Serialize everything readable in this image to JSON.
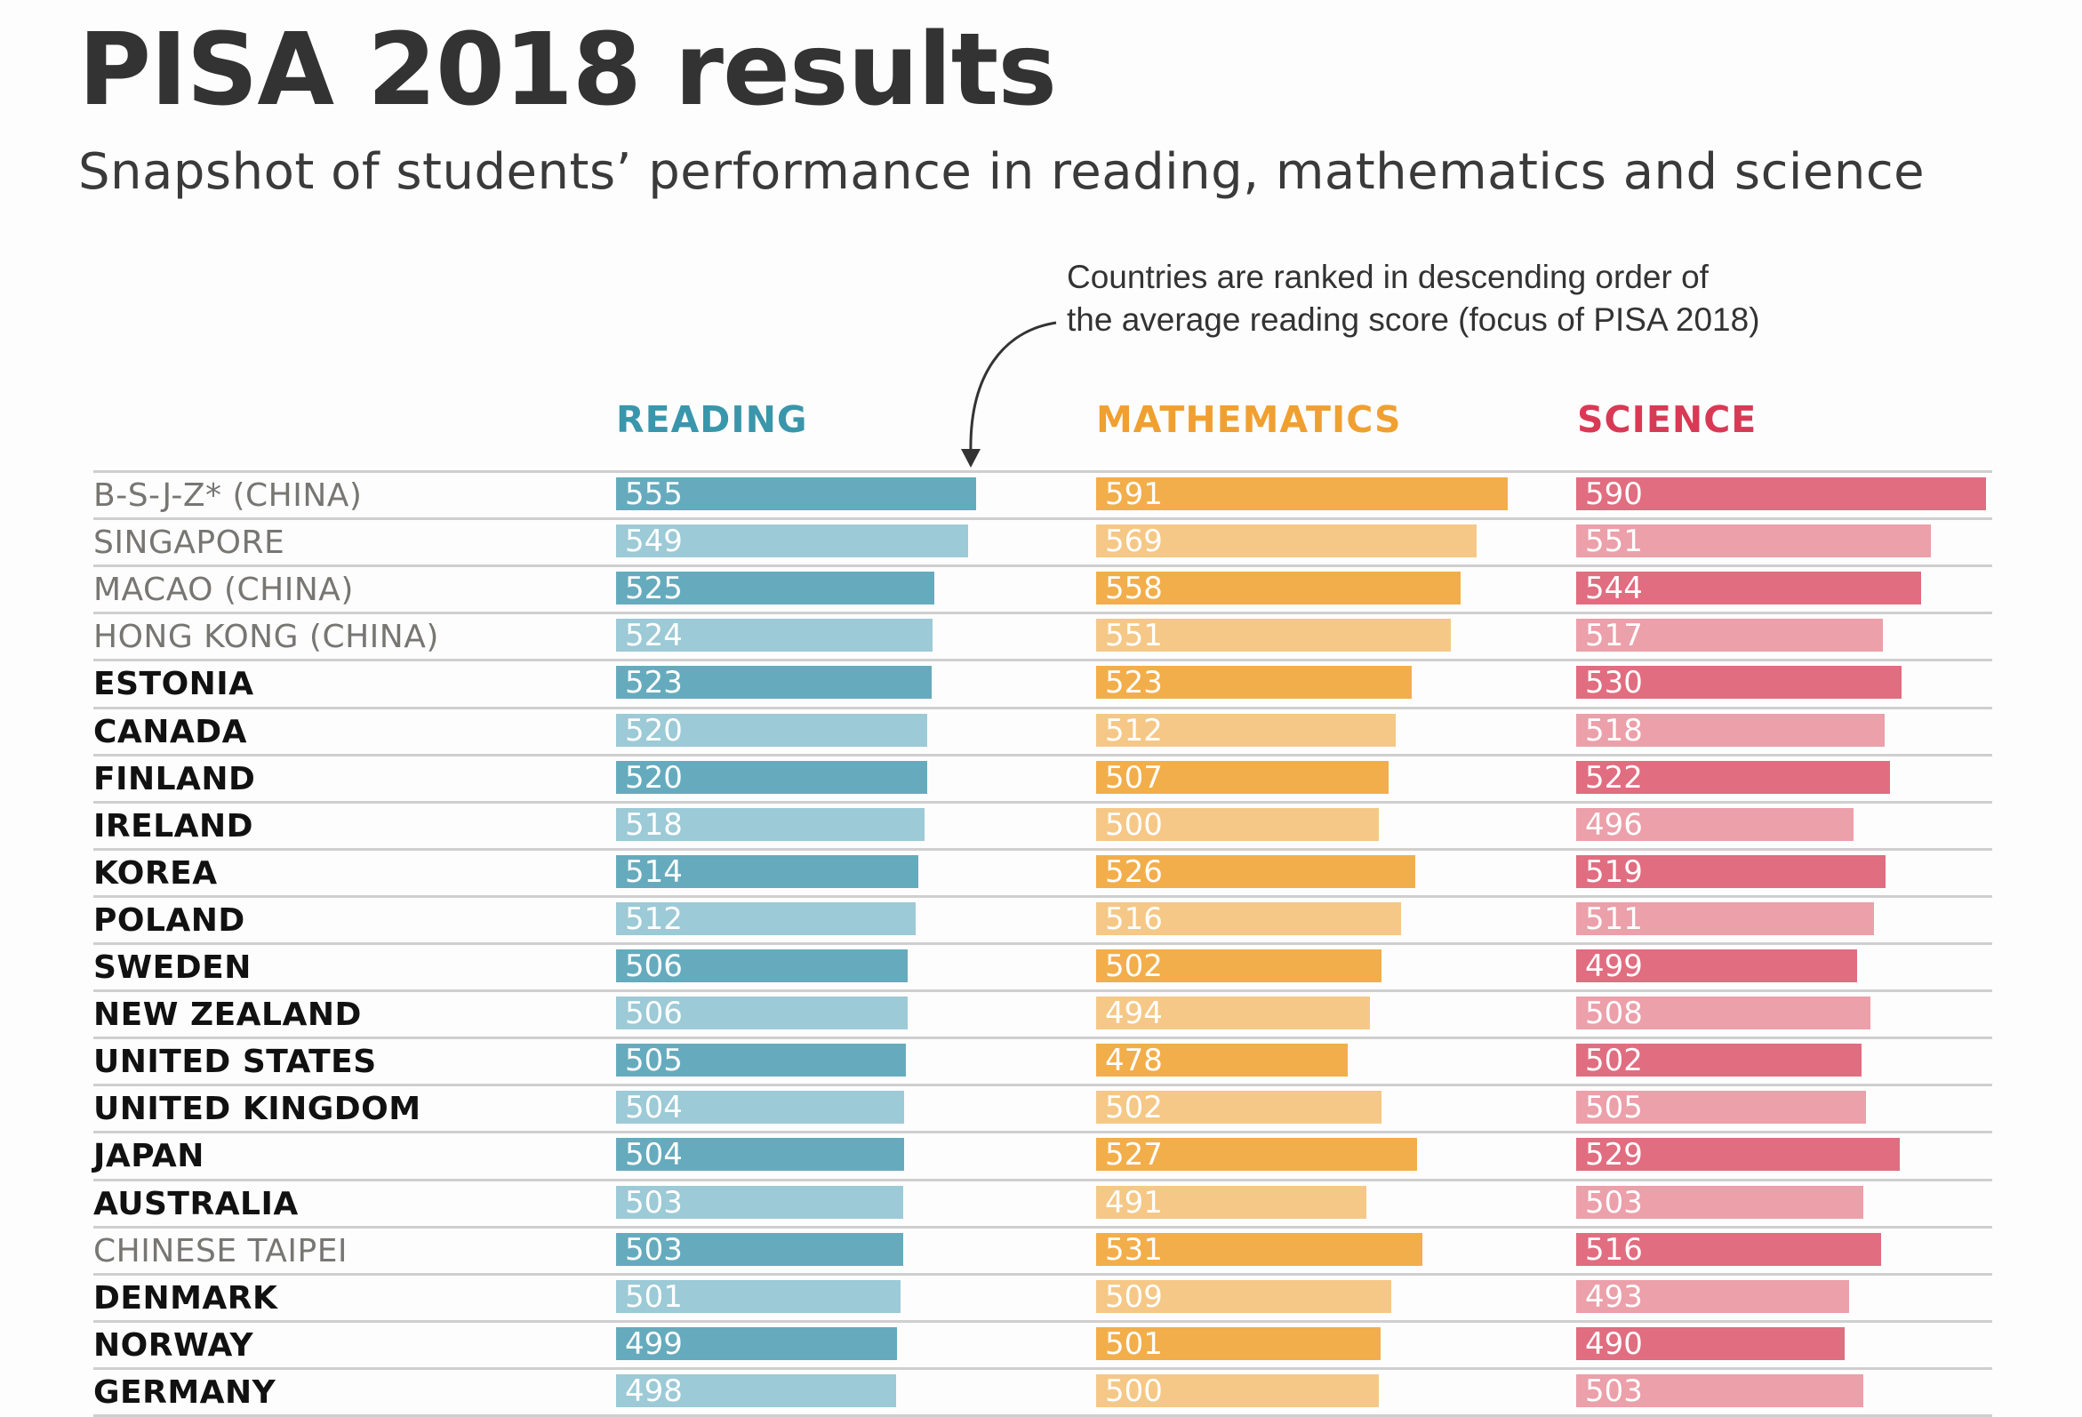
{
  "title": "PISA 2018 results",
  "subtitle": "Snapshot of students’ performance in reading, mathematics and science",
  "annotation": {
    "line1": "Countries are ranked in descending order of",
    "line2": "the average reading score (focus of PISA 2018)"
  },
  "colors": {
    "reading_header": "#3a96ab",
    "math_header": "#f0a030",
    "science_header": "#d83a56",
    "reading_dark": "#66abbd",
    "reading_light": "#9ccad6",
    "math_dark": "#f2ae4b",
    "math_light": "#f5c887",
    "science_dark": "#e06d80",
    "science_light": "#eba0aa",
    "name_gray": "#777672",
    "name_black": "#111111"
  },
  "chart_data": {
    "type": "bar",
    "orientation": "horizontal",
    "title": "PISA 2018 results",
    "subtitle": "Snapshot of students’ performance in reading, mathematics and science",
    "annotation": "Countries are ranked in descending order of the average reading score (focus of PISA 2018)",
    "categories": [
      "B-S-J-Z* (CHINA)",
      "SINGAPORE",
      "MACAO (CHINA)",
      "HONG KONG (CHINA)",
      "ESTONIA",
      "CANADA",
      "FINLAND",
      "IRELAND",
      "KOREA",
      "POLAND",
      "SWEDEN",
      "NEW ZEALAND",
      "UNITED STATES",
      "UNITED KINGDOM",
      "JAPAN",
      "AUSTRALIA",
      "CHINESE TAIPEI",
      "DENMARK",
      "NORWAY",
      "GERMANY"
    ],
    "gray_categories": [
      "B-S-J-Z* (CHINA)",
      "SINGAPORE",
      "MACAO (CHINA)",
      "HONG KONG (CHINA)",
      "CHINESE TAIPEI"
    ],
    "series": [
      {
        "name": "READING",
        "key": "reading",
        "values": [
          555,
          549,
          525,
          524,
          523,
          520,
          520,
          518,
          514,
          512,
          506,
          506,
          505,
          504,
          504,
          503,
          503,
          501,
          499,
          498
        ]
      },
      {
        "name": "MATHEMATICS",
        "key": "math",
        "values": [
          591,
          569,
          558,
          551,
          523,
          512,
          507,
          500,
          526,
          516,
          502,
          494,
          478,
          502,
          527,
          491,
          531,
          509,
          501,
          500
        ]
      },
      {
        "name": "SCIENCE",
        "key": "science",
        "values": [
          590,
          551,
          544,
          517,
          530,
          518,
          522,
          496,
          519,
          511,
          499,
          508,
          502,
          505,
          529,
          503,
          516,
          493,
          490,
          503
        ]
      }
    ],
    "xlim": [
      300,
      600
    ],
    "grid": false,
    "legend": "none"
  }
}
